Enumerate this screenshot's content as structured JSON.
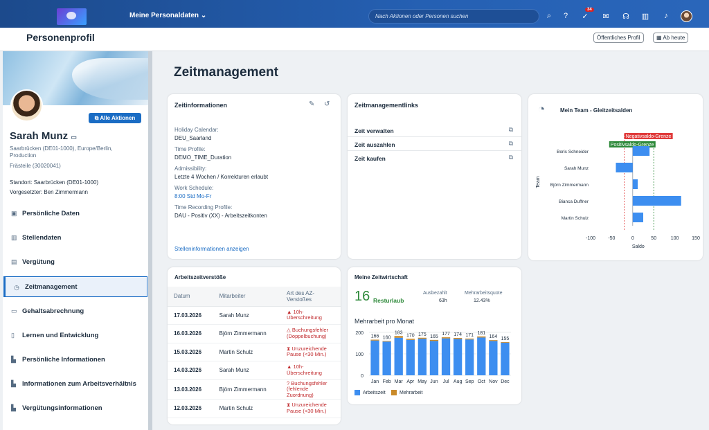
{
  "shell": {
    "title": "Meine Personaldaten",
    "search_placeholder": "Nach Aktionen oder Personen suchen",
    "badge": "34"
  },
  "header": {
    "title": "Personenprofil",
    "public_profile": "Öffentliches Profil",
    "from_today": "Ab heute"
  },
  "profile": {
    "all_actions": "Alle Aktionen",
    "name": "Sarah Munz",
    "location_line1": "Saarbrücken (DE01-1000), Europe/Berlin,",
    "location_line2": "Production",
    "position": "Frästeile (30020041)",
    "site": "Standort:  Saarbrücken (DE01-1000)",
    "manager": "Vorgesetzter:  Ben Zimmermann"
  },
  "nav": [
    "Persönliche Daten",
    "Stellendaten",
    "Vergütung",
    "Zeitmanagement",
    "Gehaltsabrechnung",
    "Lernen und Entwicklung",
    "Persönliche Informationen",
    "Informationen zum Arbeitsverhältnis",
    "Vergütungsinformationen"
  ],
  "main": {
    "title": "Zeitmanagement"
  },
  "zeitinfo": {
    "title": "Zeitinformationen",
    "fields": [
      {
        "label": "Holiday Calendar:",
        "value": "DEU_Saarland"
      },
      {
        "label": "Time Profile:",
        "value": "DEMO_TIME_Duration"
      },
      {
        "label": "Admissibility:",
        "value": "Letzte 4 Wochen / Korrekturen erlaubt"
      },
      {
        "label": "Work Schedule:",
        "value": "8:00 Std Mo-Fr"
      },
      {
        "label": "Time Recording Profile:",
        "value": "DAU - Positiv (XX) - Arbeitszeitkonten"
      }
    ],
    "link": "Stelleninformationen anzeigen"
  },
  "links": {
    "title": "Zeitmanagementlinks",
    "items": [
      "Zeit verwalten",
      "Zeit auszahlen",
      "Zeit kaufen"
    ]
  },
  "team": {
    "title": "Mein Team - Gleitzeitsalden",
    "neg_label": "Negativsaldo-Grenze",
    "pos_label": "Positivsaldo-Grenze",
    "ylabel": "Team",
    "xlabel": "Saldo"
  },
  "violations": {
    "title": "Arbeitszeitverstöße",
    "headers": [
      "Datum",
      "Mitarbeiter",
      "Art des AZ-Verstoßes"
    ],
    "rows": [
      {
        "date": "17.03.2026",
        "employee": "Sarah Munz",
        "type": "10h-Überschreitung",
        "icon": "warning-icon"
      },
      {
        "date": "16.03.2026",
        "employee": "Björn Zimmermann",
        "type": "Buchungsfehler (Doppelbuchung)",
        "icon": "warning-outline-icon"
      },
      {
        "date": "15.03.2026",
        "employee": "Martin Schulz",
        "type": "Unzureichende Pause (<30 Min.)",
        "icon": "hourglass-icon"
      },
      {
        "date": "14.03.2026",
        "employee": "Sarah Munz",
        "type": "10h-Überschreitung",
        "icon": "warning-icon"
      },
      {
        "date": "13.03.2026",
        "employee": "Björn Zimmermann",
        "type": "Buchungsfehler (fehlende Zuordnung)",
        "icon": "question-icon"
      },
      {
        "date": "12.03.2026",
        "employee": "Martin Schulz",
        "type": "Unzureichende Pause (<30 Min.)",
        "icon": "hourglass-icon"
      }
    ]
  },
  "economy": {
    "title": "Meine Zeitwirtschaft",
    "big_number": "16",
    "big_label": "Resturlaub",
    "paid_label": "Ausbezahlt",
    "paid_value": "63h",
    "quota_label": "Mehrarbeitsquote",
    "quota_value": "12.43%",
    "chart_title": "Mehrarbeit pro Monat",
    "legend_work": "Arbeitszeit",
    "legend_over": "Mehrarbeit"
  },
  "colors": {
    "accent": "#1a6cc4",
    "bar": "#3d8ef0",
    "over": "#c98a2a",
    "neg": "#e03a3a",
    "pos": "#2f8a3b"
  },
  "chart_data": [
    {
      "type": "bar",
      "orientation": "horizontal",
      "categories": [
        "Boris Schneider",
        "Sarah Munz",
        "Björn Zimmermann",
        "Bianca Duffner",
        "Martin Schulz"
      ],
      "values": [
        40,
        -40,
        12,
        115,
        25
      ],
      "xlim": [
        -100,
        150
      ],
      "xticks": [
        -100,
        -50,
        0,
        50,
        100,
        150
      ],
      "thresholds": {
        "negative": -20,
        "positive": 50
      },
      "xlabel": "Saldo",
      "ylabel": "Team"
    },
    {
      "type": "bar",
      "stacked": true,
      "categories": [
        "Jan",
        "Feb",
        "Mar",
        "Apr",
        "May",
        "Jun",
        "Jul",
        "Aug",
        "Sep",
        "Oct",
        "Nov",
        "Dec"
      ],
      "totals": [
        166,
        160,
        183,
        170,
        175,
        165,
        177,
        174,
        171,
        181,
        164,
        155
      ],
      "series": [
        {
          "name": "Arbeitszeit",
          "values": [
            162,
            157,
            175,
            165,
            170,
            160,
            172,
            169,
            167,
            176,
            160,
            152
          ]
        },
        {
          "name": "Mehrarbeit",
          "values": [
            4,
            3,
            8,
            5,
            5,
            5,
            5,
            5,
            4,
            5,
            4,
            3
          ]
        }
      ],
      "ylim": [
        0,
        200
      ],
      "yticks": [
        0,
        100,
        200
      ],
      "title": "Mehrarbeit pro Monat"
    }
  ]
}
